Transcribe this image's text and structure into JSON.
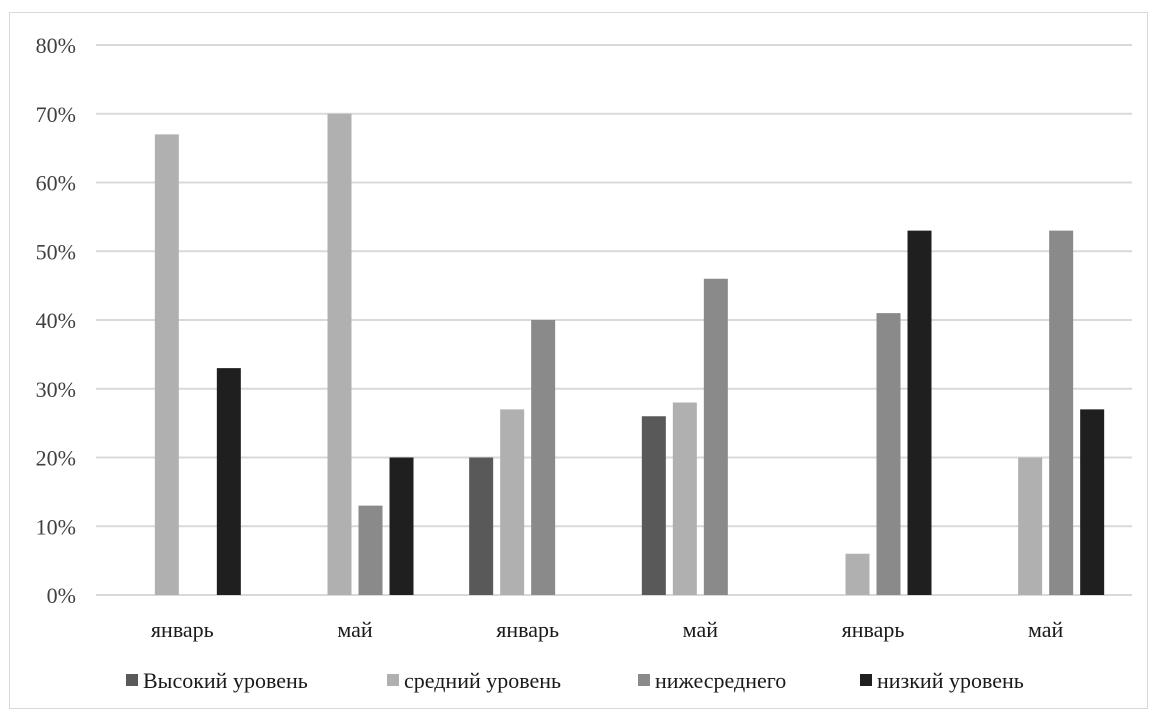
{
  "chart_data": {
    "type": "bar",
    "title": "",
    "xlabel": "",
    "ylabel": "",
    "categories": [
      "январь",
      "май",
      "январь",
      "май",
      "январь",
      "май"
    ],
    "ylim": [
      0,
      80
    ],
    "yticks": [
      "0%",
      "10%",
      "20%",
      "30%",
      "40%",
      "50%",
      "60%",
      "70%",
      "80%"
    ],
    "grid": true,
    "legend_position": "bottom",
    "series": [
      {
        "name": "Высокий уровень",
        "color": "#595959",
        "values": [
          0,
          0,
          20,
          26,
          0,
          0
        ]
      },
      {
        "name": "средний уровень",
        "color": "#b0b0b0",
        "values": [
          67,
          70,
          27,
          28,
          6,
          20
        ]
      },
      {
        "name": "нижесреднего",
        "color": "#8a8a8a",
        "values": [
          0,
          13,
          40,
          46,
          41,
          53
        ]
      },
      {
        "name": "низкий уровень",
        "color": "#1f1f1f",
        "values": [
          33,
          20,
          0,
          0,
          53,
          27
        ]
      }
    ]
  }
}
